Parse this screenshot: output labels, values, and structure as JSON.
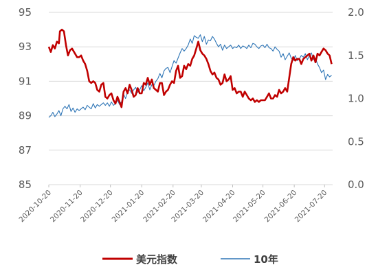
{
  "chart_data": {
    "type": "line",
    "title": "",
    "xlabel": "",
    "ylabel_left": "",
    "ylabel_right": "",
    "x_tick_labels": [
      "2020-10-20",
      "2020-11-20",
      "2020-12-20",
      "2021-01-20",
      "2021-02-20",
      "2021-03-20",
      "2021-04-20",
      "2021-05-20",
      "2021-06-20",
      "2021-07-20"
    ],
    "x_tick_days": [
      0,
      31,
      61,
      92,
      123,
      151,
      182,
      212,
      243,
      273
    ],
    "x_range_days": [
      0,
      281
    ],
    "y_left": {
      "ticks": [
        "85",
        "87",
        "89",
        "91",
        "93",
        "95"
      ],
      "range": [
        85,
        95
      ]
    },
    "y_right": {
      "ticks": [
        "0.0",
        "0.5",
        "1.0",
        "1.5",
        "2.0"
      ],
      "range": [
        0,
        2.0
      ]
    },
    "legend_position": "bottom",
    "grid": "horizontal",
    "series": [
      {
        "name": "美元指数",
        "axis": "left",
        "color": "#C00000",
        "x": [
          0,
          2,
          4,
          6,
          8,
          10,
          11,
          13,
          15,
          17,
          19,
          21,
          23,
          26,
          28,
          30,
          32,
          34,
          36,
          38,
          40,
          42,
          44,
          46,
          48,
          50,
          52,
          54,
          56,
          58,
          60,
          62,
          64,
          66,
          68,
          70,
          72,
          74,
          76,
          78,
          80,
          82,
          84,
          86,
          88,
          90,
          92,
          94,
          96,
          98,
          100,
          102,
          104,
          106,
          108,
          110,
          112,
          114,
          116,
          118,
          120,
          122,
          124,
          126,
          128,
          130,
          132,
          134,
          136,
          138,
          140,
          142,
          144,
          146,
          148,
          150,
          152,
          154,
          156,
          158,
          160,
          162,
          164,
          166,
          168,
          170,
          172,
          174,
          176,
          178,
          180,
          182,
          184,
          186,
          188,
          190,
          192,
          194,
          196,
          198,
          200,
          202,
          204,
          206,
          208,
          210,
          212,
          214,
          216,
          218,
          220,
          222,
          224,
          226,
          228,
          230,
          232,
          234,
          236,
          238,
          240,
          242,
          244,
          246,
          248,
          250,
          252,
          254,
          256,
          258,
          260,
          262,
          264,
          266,
          268,
          270,
          272,
          274,
          276,
          278,
          280
        ],
        "values": [
          93.0,
          92.7,
          93.1,
          92.9,
          93.3,
          93.2,
          93.9,
          94.0,
          93.9,
          93.1,
          92.5,
          92.8,
          92.9,
          92.6,
          92.4,
          92.4,
          92.5,
          92.2,
          92.0,
          91.6,
          91.0,
          90.9,
          91.0,
          90.9,
          90.5,
          90.4,
          90.8,
          90.9,
          90.1,
          90.0,
          90.2,
          90.3,
          89.9,
          89.7,
          90.1,
          89.8,
          89.5,
          90.4,
          90.6,
          90.3,
          90.8,
          90.5,
          90.1,
          90.2,
          90.6,
          90.3,
          90.3,
          90.9,
          90.8,
          91.2,
          90.8,
          91.1,
          90.6,
          90.5,
          90.4,
          90.9,
          90.9,
          90.2,
          90.4,
          90.5,
          90.8,
          91.0,
          90.9,
          91.6,
          91.9,
          91.2,
          91.3,
          91.9,
          91.7,
          92.0,
          91.9,
          92.3,
          92.5,
          92.9,
          93.3,
          92.8,
          92.6,
          92.5,
          92.3,
          92.0,
          91.6,
          91.4,
          91.5,
          91.2,
          91.1,
          90.8,
          90.9,
          91.4,
          91.0,
          91.1,
          91.3,
          90.5,
          90.6,
          90.3,
          90.4,
          90.4,
          90.1,
          90.4,
          90.2,
          90.0,
          89.9,
          90.0,
          89.8,
          89.9,
          89.8,
          89.9,
          89.9,
          89.9,
          90.1,
          90.3,
          90.0,
          90.0,
          90.2,
          90.1,
          90.5,
          90.3,
          90.4,
          90.6,
          90.4,
          91.2,
          92.0,
          92.4,
          92.2,
          92.3,
          92.3,
          92.0,
          92.3,
          92.4,
          92.5,
          92.6,
          92.2,
          92.5,
          92.1,
          92.6,
          92.5,
          92.7,
          92.9,
          92.8,
          92.6,
          92.5,
          92.0
        ]
      },
      {
        "name": "10年",
        "axis": "right",
        "color": "#2E75B6",
        "x": [
          0,
          2,
          4,
          6,
          8,
          10,
          12,
          14,
          16,
          18,
          20,
          22,
          24,
          26,
          28,
          30,
          32,
          34,
          36,
          38,
          40,
          42,
          44,
          46,
          48,
          50,
          52,
          54,
          56,
          58,
          60,
          62,
          64,
          66,
          68,
          70,
          72,
          74,
          76,
          78,
          80,
          82,
          84,
          86,
          88,
          90,
          92,
          94,
          96,
          98,
          100,
          102,
          104,
          106,
          108,
          110,
          112,
          114,
          116,
          118,
          120,
          122,
          124,
          126,
          128,
          130,
          132,
          134,
          136,
          138,
          140,
          142,
          144,
          146,
          148,
          150,
          152,
          154,
          156,
          158,
          160,
          162,
          164,
          166,
          168,
          170,
          172,
          174,
          176,
          178,
          180,
          182,
          184,
          186,
          188,
          190,
          192,
          194,
          196,
          198,
          200,
          202,
          204,
          206,
          208,
          210,
          212,
          214,
          216,
          218,
          220,
          222,
          224,
          226,
          228,
          230,
          232,
          234,
          236,
          238,
          240,
          242,
          244,
          246,
          248,
          250,
          252,
          254,
          256,
          258,
          260,
          262,
          264,
          266,
          268,
          270,
          272,
          274,
          276,
          278,
          280
        ],
        "values": [
          0.78,
          0.8,
          0.84,
          0.79,
          0.82,
          0.86,
          0.8,
          0.88,
          0.91,
          0.88,
          0.93,
          0.85,
          0.89,
          0.84,
          0.88,
          0.86,
          0.88,
          0.9,
          0.87,
          0.92,
          0.9,
          0.88,
          0.94,
          0.89,
          0.93,
          0.91,
          0.93,
          0.95,
          0.92,
          0.95,
          0.91,
          0.96,
          0.92,
          0.94,
          0.98,
          0.93,
          0.96,
          1.05,
          1.0,
          1.08,
          1.1,
          1.06,
          1.1,
          1.13,
          1.07,
          1.1,
          1.15,
          1.09,
          1.13,
          1.18,
          1.1,
          1.16,
          1.15,
          1.2,
          1.23,
          1.29,
          1.24,
          1.32,
          1.35,
          1.36,
          1.3,
          1.37,
          1.44,
          1.41,
          1.47,
          1.53,
          1.58,
          1.55,
          1.58,
          1.62,
          1.69,
          1.64,
          1.73,
          1.71,
          1.7,
          1.74,
          1.66,
          1.72,
          1.63,
          1.68,
          1.67,
          1.72,
          1.69,
          1.64,
          1.6,
          1.63,
          1.56,
          1.62,
          1.58,
          1.6,
          1.62,
          1.58,
          1.6,
          1.59,
          1.62,
          1.58,
          1.61,
          1.6,
          1.58,
          1.62,
          1.59,
          1.64,
          1.63,
          1.6,
          1.58,
          1.61,
          1.62,
          1.59,
          1.63,
          1.59,
          1.58,
          1.55,
          1.6,
          1.57,
          1.55,
          1.48,
          1.52,
          1.45,
          1.49,
          1.53,
          1.47,
          1.44,
          1.5,
          1.44,
          1.46,
          1.5,
          1.48,
          1.52,
          1.45,
          1.5,
          1.53,
          1.45,
          1.47,
          1.4,
          1.36,
          1.3,
          1.33,
          1.22,
          1.28,
          1.25,
          1.27
        ]
      }
    ]
  }
}
